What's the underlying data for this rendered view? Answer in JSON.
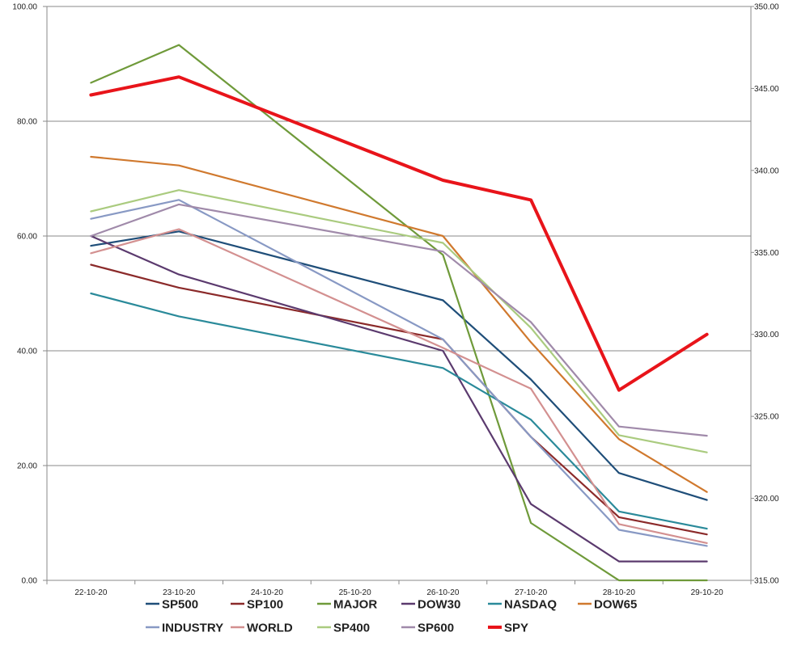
{
  "chart_data": {
    "type": "line",
    "title": "",
    "xlabel": "",
    "ylabel": "",
    "categories": [
      "22-10-20",
      "23-10-20",
      "24-10-20",
      "25-10-20",
      "26-10-20",
      "27-10-20",
      "28-10-20",
      "29-10-20"
    ],
    "ylim": [
      0,
      100
    ],
    "y_ticks": [
      "0.00",
      "20.00",
      "40.00",
      "60.00",
      "80.00",
      "100.00"
    ],
    "y2lim": [
      315,
      350
    ],
    "y2_ticks": [
      "315.00",
      "320.00",
      "325.00",
      "330.00",
      "335.00",
      "340.00",
      "345.00",
      "350.00"
    ],
    "grid": true,
    "legend_position": "bottom",
    "series": [
      {
        "name": "SP500",
        "color": "#1f4e79",
        "axis": "left",
        "values": [
          {
            "x": 0,
            "y": 58.3
          },
          {
            "x": 1,
            "y": 60.8
          },
          {
            "x": 4,
            "y": 48.8
          },
          {
            "x": 5,
            "y": 35.0
          },
          {
            "x": 6,
            "y": 18.7
          },
          {
            "x": 7,
            "y": 14.0
          }
        ]
      },
      {
        "name": "SP100",
        "color": "#8b2a2a",
        "axis": "left",
        "values": [
          {
            "x": 0,
            "y": 55.0
          },
          {
            "x": 1,
            "y": 51.0
          },
          {
            "x": 4,
            "y": 42.0
          },
          {
            "x": 5,
            "y": 25.0
          },
          {
            "x": 6,
            "y": 11.0
          },
          {
            "x": 7,
            "y": 8.0
          }
        ]
      },
      {
        "name": "MAJOR",
        "color": "#6f9a3a",
        "axis": "left",
        "values": [
          {
            "x": 0,
            "y": 86.7
          },
          {
            "x": 1,
            "y": 93.3
          },
          {
            "x": 4,
            "y": 56.7
          },
          {
            "x": 5,
            "y": 10.0
          },
          {
            "x": 6,
            "y": 0.0
          },
          {
            "x": 7,
            "y": 0.0
          }
        ]
      },
      {
        "name": "DOW30",
        "color": "#5b3a6e",
        "axis": "left",
        "values": [
          {
            "x": 0,
            "y": 60.0
          },
          {
            "x": 1,
            "y": 53.3
          },
          {
            "x": 4,
            "y": 40.0
          },
          {
            "x": 5,
            "y": 13.3
          },
          {
            "x": 6,
            "y": 3.3
          },
          {
            "x": 7,
            "y": 3.3
          }
        ]
      },
      {
        "name": "NASDAQ",
        "color": "#2a8a9a",
        "axis": "left",
        "values": [
          {
            "x": 0,
            "y": 50.0
          },
          {
            "x": 1,
            "y": 46.0
          },
          {
            "x": 4,
            "y": 37.0
          },
          {
            "x": 5,
            "y": 28.0
          },
          {
            "x": 6,
            "y": 12.0
          },
          {
            "x": 7,
            "y": 9.0
          }
        ]
      },
      {
        "name": "DOW65",
        "color": "#d0792e",
        "axis": "left",
        "values": [
          {
            "x": 0,
            "y": 73.8
          },
          {
            "x": 1,
            "y": 72.3
          },
          {
            "x": 4,
            "y": 60.0
          },
          {
            "x": 5,
            "y": 41.5
          },
          {
            "x": 6,
            "y": 24.6
          },
          {
            "x": 7,
            "y": 15.4
          }
        ]
      },
      {
        "name": "INDUSTRY",
        "color": "#8899c4",
        "axis": "left",
        "values": [
          {
            "x": 0,
            "y": 63.0
          },
          {
            "x": 1,
            "y": 66.3
          },
          {
            "x": 4,
            "y": 42.0
          },
          {
            "x": 5,
            "y": 25.0
          },
          {
            "x": 6,
            "y": 8.8
          },
          {
            "x": 7,
            "y": 6.0
          }
        ]
      },
      {
        "name": "WORLD",
        "color": "#d39090",
        "axis": "left",
        "values": [
          {
            "x": 0,
            "y": 57.0
          },
          {
            "x": 1,
            "y": 61.2
          },
          {
            "x": 4,
            "y": 40.5
          },
          {
            "x": 5,
            "y": 33.4
          },
          {
            "x": 6,
            "y": 9.8
          },
          {
            "x": 7,
            "y": 6.5
          }
        ]
      },
      {
        "name": "SP400",
        "color": "#aacb7f",
        "axis": "left",
        "values": [
          {
            "x": 0,
            "y": 64.3
          },
          {
            "x": 1,
            "y": 68.0
          },
          {
            "x": 4,
            "y": 58.8
          },
          {
            "x": 5,
            "y": 44.0
          },
          {
            "x": 6,
            "y": 25.3
          },
          {
            "x": 7,
            "y": 22.3
          }
        ]
      },
      {
        "name": "SP600",
        "color": "#a08aaa",
        "axis": "left",
        "values": [
          {
            "x": 0,
            "y": 60.0
          },
          {
            "x": 1,
            "y": 65.5
          },
          {
            "x": 4,
            "y": 57.3
          },
          {
            "x": 5,
            "y": 45.0
          },
          {
            "x": 6,
            "y": 26.8
          },
          {
            "x": 7,
            "y": 25.2
          }
        ]
      },
      {
        "name": "SPY",
        "color": "#e8141a",
        "axis": "right",
        "values": [
          {
            "x": 0,
            "y": 344.6
          },
          {
            "x": 1,
            "y": 345.7
          },
          {
            "x": 4,
            "y": 339.4
          },
          {
            "x": 5,
            "y": 338.2
          },
          {
            "x": 6,
            "y": 326.6
          },
          {
            "x": 7,
            "y": 330.0
          }
        ]
      }
    ]
  }
}
